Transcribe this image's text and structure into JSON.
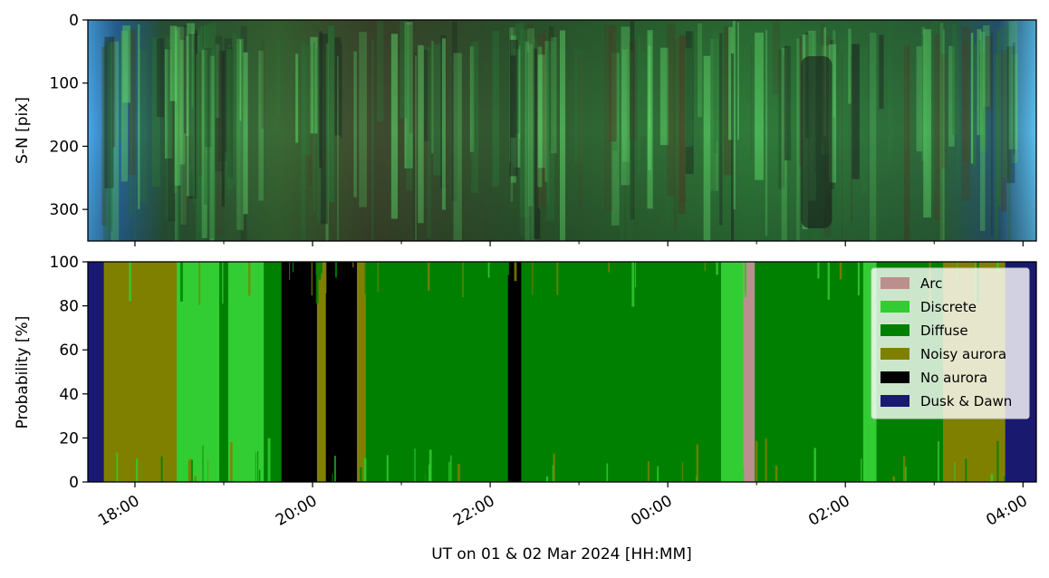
{
  "chart_data": [
    {
      "type": "heatmap",
      "description_free": true,
      "ylabel": "S-N [pix]",
      "ylim": [
        350,
        0
      ],
      "yticks": [
        0,
        100,
        200,
        300
      ],
      "colors": {
        "dark": "#1e2d22",
        "brown": "#4a4a2a",
        "mid_green": "#2f7a3a",
        "bright_green": "#5fd86a",
        "dusk_blue": "#4aa8e8"
      }
    },
    {
      "type": "area",
      "stacked": true,
      "ylabel": "Probability [%]",
      "xlabel": "UT on 01 & 02 Mar 2024 [HH:MM]",
      "ylim": [
        0,
        100
      ],
      "yticks": [
        0,
        20,
        40,
        60,
        80,
        100
      ],
      "xlim_hours": [
        17.47,
        28.15
      ],
      "xticks_major": [
        {
          "value": 18,
          "label": "18:00"
        },
        {
          "value": 20,
          "label": "20:00"
        },
        {
          "value": 22,
          "label": "22:00"
        },
        {
          "value": 24,
          "label": "00:00"
        },
        {
          "value": 26,
          "label": "02:00"
        },
        {
          "value": 28,
          "label": "04:00"
        }
      ],
      "xticks_minor": [
        19,
        21,
        23,
        25,
        27
      ],
      "legend_position": "top-right",
      "series": [
        {
          "name": "Arc",
          "color": "#bc8f8f"
        },
        {
          "name": "Discrete",
          "color": "#32cd32"
        },
        {
          "name": "Diffuse",
          "color": "#008000"
        },
        {
          "name": "Noisy aurora",
          "color": "#808000"
        },
        {
          "name": "No aurora",
          "color": "#000000"
        },
        {
          "name": "Dusk & Dawn",
          "color": "#191970"
        }
      ],
      "segments": [
        {
          "start": 17.47,
          "end": 17.65,
          "class": "Dusk & Dawn"
        },
        {
          "start": 17.65,
          "end": 18.47,
          "class": "Noisy aurora"
        },
        {
          "start": 18.47,
          "end": 18.95,
          "class": "Discrete"
        },
        {
          "start": 18.95,
          "end": 19.05,
          "class": "Diffuse"
        },
        {
          "start": 19.05,
          "end": 19.45,
          "class": "Discrete"
        },
        {
          "start": 19.45,
          "end": 19.65,
          "class": "Diffuse"
        },
        {
          "start": 19.65,
          "end": 20.05,
          "class": "No aurora"
        },
        {
          "start": 20.05,
          "end": 20.15,
          "class": "Noisy aurora"
        },
        {
          "start": 20.15,
          "end": 20.5,
          "class": "No aurora"
        },
        {
          "start": 20.5,
          "end": 20.6,
          "class": "Noisy aurora"
        },
        {
          "start": 20.6,
          "end": 21.65,
          "class": "Diffuse"
        },
        {
          "start": 21.65,
          "end": 22.0,
          "class": "Diffuse"
        },
        {
          "start": 22.0,
          "end": 22.2,
          "class": "Diffuse"
        },
        {
          "start": 22.2,
          "end": 22.35,
          "class": "No aurora"
        },
        {
          "start": 22.35,
          "end": 22.6,
          "class": "Diffuse"
        },
        {
          "start": 22.6,
          "end": 24.6,
          "class": "Diffuse"
        },
        {
          "start": 24.6,
          "end": 24.85,
          "class": "Discrete"
        },
        {
          "start": 24.85,
          "end": 24.98,
          "class": "Arc"
        },
        {
          "start": 24.98,
          "end": 26.2,
          "class": "Diffuse"
        },
        {
          "start": 26.2,
          "end": 26.35,
          "class": "Discrete"
        },
        {
          "start": 26.35,
          "end": 26.7,
          "class": "Diffuse"
        },
        {
          "start": 26.7,
          "end": 27.1,
          "class": "Diffuse"
        },
        {
          "start": 27.1,
          "end": 27.8,
          "class": "Noisy aurora"
        },
        {
          "start": 27.8,
          "end": 28.15,
          "class": "Dusk & Dawn"
        }
      ]
    }
  ]
}
